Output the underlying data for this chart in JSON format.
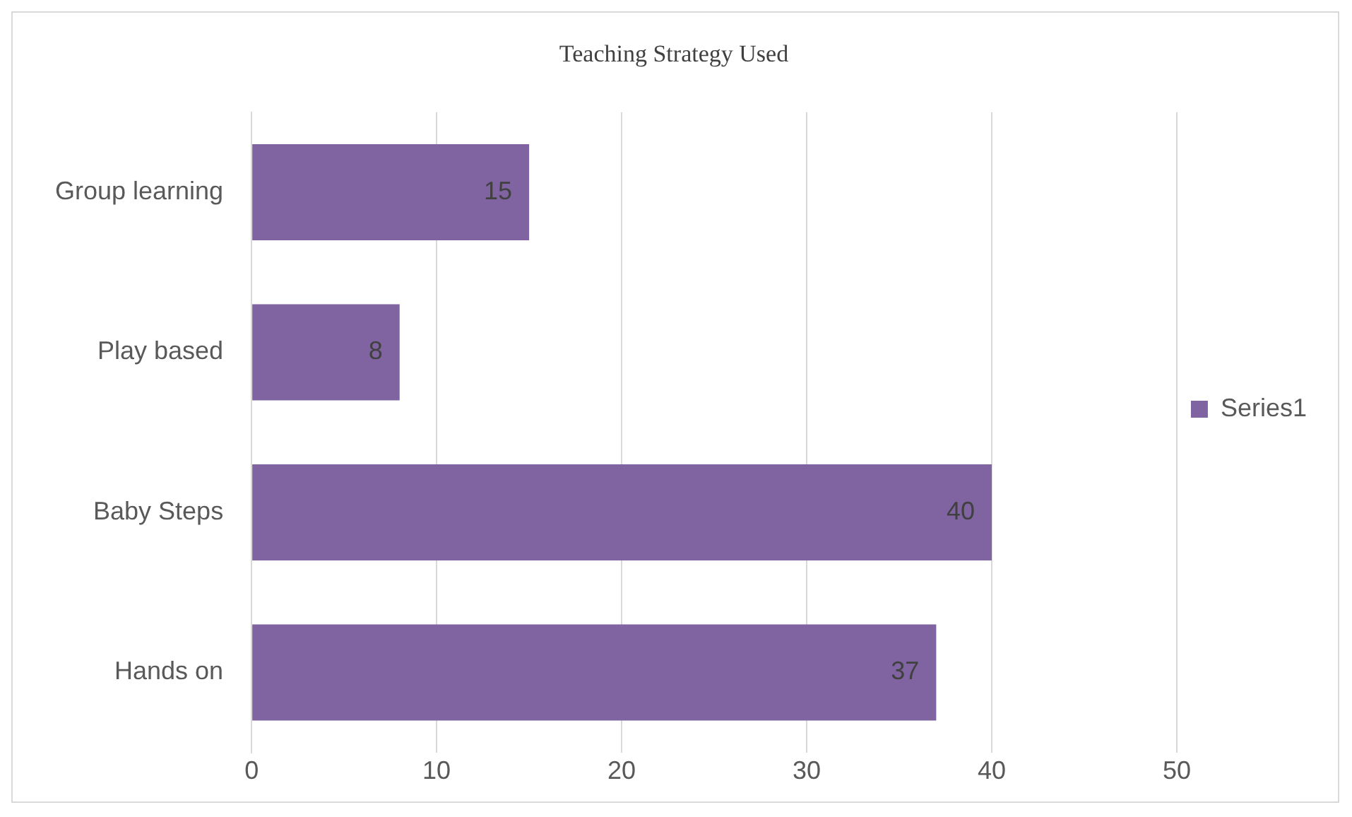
{
  "chart_data": {
    "type": "bar",
    "title": "Teaching Strategy Used",
    "orientation": "horizontal",
    "categories": [
      "Group learning",
      "Play based",
      "Baby Steps",
      "Hands on"
    ],
    "series": [
      {
        "name": "Series1",
        "color": "#8064a2",
        "values": [
          15,
          8,
          40,
          37
        ]
      }
    ],
    "xlim": [
      0,
      50
    ],
    "xticks": [
      0,
      10,
      20,
      30,
      40,
      50
    ],
    "grid": "x",
    "legend": "right",
    "data_labels": true
  }
}
